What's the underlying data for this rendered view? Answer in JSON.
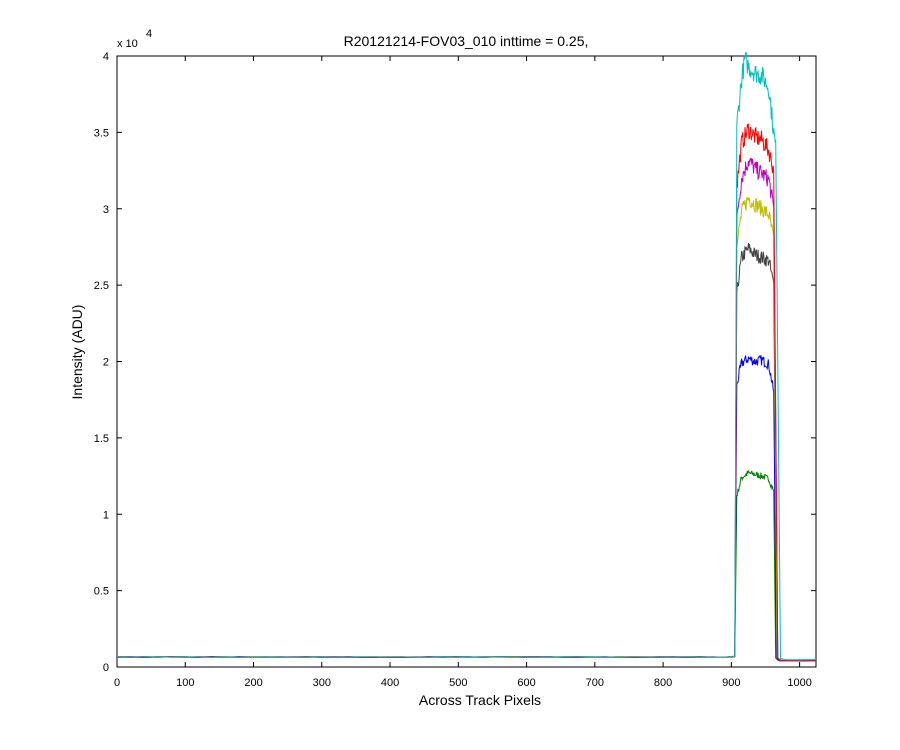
{
  "chart_data": {
    "type": "line",
    "title": "R20121214-FOV03_010 inttime = 0.25,",
    "xlabel": "Across Track Pixels",
    "ylabel": "Intensity (ADU)",
    "y_multiplier_base": "x 10",
    "y_multiplier_exp": "4",
    "xlim": [
      0,
      1024
    ],
    "ylim": [
      0,
      40000
    ],
    "xticks": [
      0,
      100,
      200,
      300,
      400,
      500,
      600,
      700,
      800,
      900,
      1000
    ],
    "yticks": [
      0,
      5000,
      10000,
      15000,
      20000,
      25000,
      30000,
      35000,
      40000
    ],
    "ytick_labels": [
      "0",
      "0.5",
      "1",
      "1.5",
      "2",
      "2.5",
      "3",
      "3.5",
      "4"
    ],
    "grid": false,
    "baseline": 650,
    "series": [
      {
        "color": "#008000",
        "values": [
          [
            0,
            650
          ],
          [
            893,
            650
          ],
          [
            905,
            680
          ],
          [
            908,
            11200
          ],
          [
            915,
            12400
          ],
          [
            925,
            12700
          ],
          [
            935,
            12600
          ],
          [
            945,
            12500
          ],
          [
            955,
            12300
          ],
          [
            962,
            11500
          ],
          [
            965,
            600
          ],
          [
            968,
            420
          ],
          [
            1024,
            420
          ]
        ]
      },
      {
        "color": "#0000ff",
        "values": [
          [
            0,
            650
          ],
          [
            893,
            650
          ],
          [
            905,
            680
          ],
          [
            908,
            18500
          ],
          [
            915,
            19900
          ],
          [
            925,
            20200
          ],
          [
            935,
            20000
          ],
          [
            945,
            20100
          ],
          [
            955,
            19800
          ],
          [
            962,
            18000
          ],
          [
            966,
            600
          ],
          [
            970,
            420
          ],
          [
            1024,
            420
          ]
        ]
      },
      {
        "color": "#404040",
        "values": [
          [
            0,
            650
          ],
          [
            893,
            650
          ],
          [
            905,
            680
          ],
          [
            908,
            24500
          ],
          [
            915,
            26800
          ],
          [
            925,
            27400
          ],
          [
            935,
            27000
          ],
          [
            945,
            26800
          ],
          [
            955,
            26600
          ],
          [
            962,
            25000
          ],
          [
            967,
            600
          ],
          [
            972,
            420
          ],
          [
            1024,
            420
          ]
        ]
      },
      {
        "color": "#bfbf00",
        "values": [
          [
            0,
            650
          ],
          [
            893,
            650
          ],
          [
            905,
            680
          ],
          [
            908,
            27500
          ],
          [
            915,
            29800
          ],
          [
            925,
            30700
          ],
          [
            935,
            30300
          ],
          [
            945,
            30000
          ],
          [
            955,
            29600
          ],
          [
            962,
            28000
          ],
          [
            967,
            600
          ],
          [
            972,
            420
          ],
          [
            1024,
            420
          ]
        ]
      },
      {
        "color": "#bf00bf",
        "values": [
          [
            0,
            650
          ],
          [
            893,
            650
          ],
          [
            905,
            680
          ],
          [
            908,
            29500
          ],
          [
            915,
            32000
          ],
          [
            925,
            33200
          ],
          [
            935,
            32600
          ],
          [
            945,
            32300
          ],
          [
            955,
            31900
          ],
          [
            962,
            30000
          ],
          [
            968,
            600
          ],
          [
            973,
            420
          ],
          [
            1024,
            420
          ]
        ]
      },
      {
        "color": "#ff0000",
        "values": [
          [
            0,
            650
          ],
          [
            893,
            650
          ],
          [
            905,
            680
          ],
          [
            908,
            31500
          ],
          [
            915,
            34300
          ],
          [
            925,
            35200
          ],
          [
            935,
            34700
          ],
          [
            945,
            34500
          ],
          [
            955,
            33800
          ],
          [
            962,
            32500
          ],
          [
            968,
            600
          ],
          [
            973,
            420
          ],
          [
            1024,
            420
          ]
        ]
      },
      {
        "color": "#00bfbf",
        "values": [
          [
            0,
            650
          ],
          [
            893,
            650
          ],
          [
            905,
            680
          ],
          [
            908,
            35500
          ],
          [
            915,
            38500
          ],
          [
            920,
            39800
          ],
          [
            925,
            39300
          ],
          [
            935,
            38900
          ],
          [
            945,
            38700
          ],
          [
            955,
            37900
          ],
          [
            962,
            35000
          ],
          [
            965,
            34000
          ],
          [
            972,
            600
          ],
          [
            978,
            500
          ],
          [
            1024,
            500
          ]
        ]
      }
    ]
  }
}
